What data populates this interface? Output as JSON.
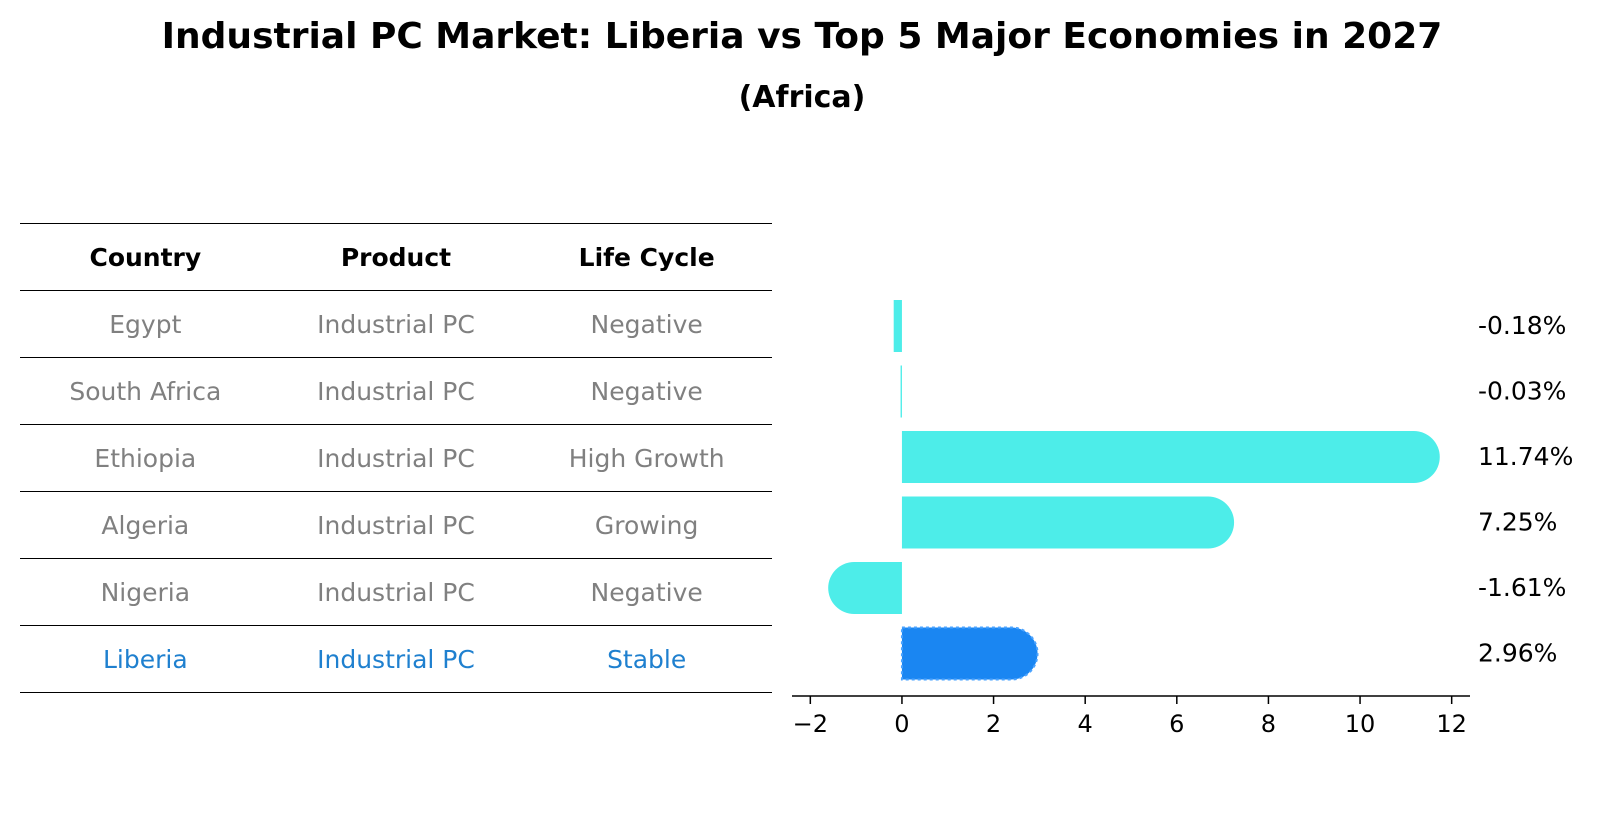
{
  "title": "Industrial PC Market: Liberia vs Top 5 Major Economies in 2027",
  "subtitle": "(Africa)",
  "table": {
    "headers": [
      "Country",
      "Product",
      "Life Cycle"
    ],
    "rows": [
      {
        "country": "Egypt",
        "product": "Industrial PC",
        "life_cycle": "Negative"
      },
      {
        "country": "South Africa",
        "product": "Industrial PC",
        "life_cycle": "Negative"
      },
      {
        "country": "Ethiopia",
        "product": "Industrial PC",
        "life_cycle": "High Growth"
      },
      {
        "country": "Algeria",
        "product": "Industrial PC",
        "life_cycle": "Growing"
      },
      {
        "country": "Nigeria",
        "product": "Industrial PC",
        "life_cycle": "Negative"
      },
      {
        "country": "Liberia",
        "product": "Industrial PC",
        "life_cycle": "Stable"
      }
    ]
  },
  "colors": {
    "bar": "#4dede9",
    "highlight_bar": "#1a86f2",
    "highlight_text": "#1f80cf",
    "muted_text": "#808080"
  },
  "chart_data": {
    "type": "bar",
    "orientation": "horizontal",
    "categories": [
      "Egypt",
      "South Africa",
      "Ethiopia",
      "Algeria",
      "Nigeria",
      "Liberia"
    ],
    "values": [
      -0.18,
      -0.03,
      11.74,
      7.25,
      -1.61,
      2.96
    ],
    "labels": [
      "-0.18%",
      "-0.03%",
      "11.74%",
      "7.25%",
      "-1.61%",
      "2.96%"
    ],
    "highlight": "Liberia",
    "xlim": [
      -2.4,
      12.4
    ],
    "xticks": [
      -2,
      0,
      2,
      4,
      6,
      8,
      10,
      12
    ],
    "xtick_labels": [
      "−2",
      "0",
      "2",
      "4",
      "6",
      "8",
      "10",
      "12"
    ]
  }
}
